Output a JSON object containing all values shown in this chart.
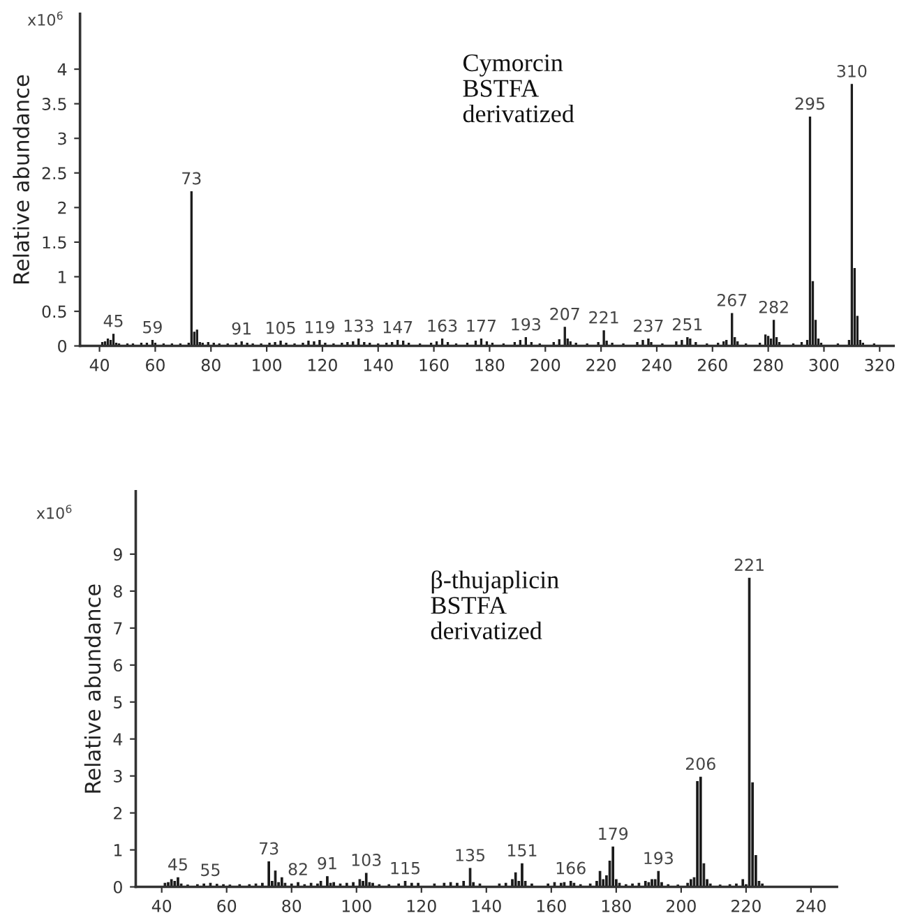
{
  "chart_data": [
    {
      "type": "bar",
      "ylabel": "Relative abundance",
      "color": "#1a1a1a",
      "xlim": [
        33,
        325
      ],
      "ylim": [
        0,
        4.8
      ],
      "xticks": [
        40,
        60,
        80,
        100,
        120,
        140,
        160,
        180,
        200,
        220,
        240,
        260,
        280,
        300,
        320
      ],
      "yticks": [
        0,
        0.5,
        1,
        1.5,
        2,
        2.5,
        3,
        3.5,
        4
      ],
      "grid": false,
      "x": [
        41,
        42,
        43,
        44,
        45,
        46,
        47,
        50,
        52,
        55,
        57,
        59,
        60,
        63,
        66,
        69,
        72,
        73,
        74,
        75,
        76,
        77,
        79,
        81,
        83,
        86,
        89,
        91,
        93,
        95,
        98,
        101,
        103,
        105,
        107,
        110,
        113,
        115,
        117,
        119,
        121,
        124,
        127,
        129,
        131,
        133,
        135,
        137,
        140,
        143,
        145,
        147,
        149,
        151,
        155,
        159,
        161,
        163,
        165,
        168,
        172,
        175,
        177,
        179,
        181,
        185,
        189,
        191,
        193,
        195,
        198,
        203,
        205,
        207,
        208,
        209,
        211,
        215,
        219,
        221,
        222,
        224,
        228,
        233,
        235,
        237,
        238,
        242,
        247,
        249,
        251,
        252,
        254,
        258,
        262,
        264,
        265,
        267,
        268,
        269,
        272,
        277,
        279,
        280,
        281,
        282,
        283,
        284,
        289,
        292,
        294,
        295,
        296,
        297,
        298,
        299,
        305,
        309,
        310,
        311,
        312,
        313,
        314,
        318
      ],
      "values": [
        0.05,
        0.06,
        0.1,
        0.08,
        0.17,
        0.04,
        0.03,
        0.03,
        0.03,
        0.04,
        0.04,
        0.08,
        0.04,
        0.03,
        0.03,
        0.03,
        0.04,
        2.23,
        0.2,
        0.23,
        0.05,
        0.04,
        0.05,
        0.04,
        0.03,
        0.03,
        0.04,
        0.06,
        0.04,
        0.03,
        0.03,
        0.04,
        0.05,
        0.07,
        0.04,
        0.03,
        0.04,
        0.07,
        0.06,
        0.08,
        0.04,
        0.03,
        0.04,
        0.05,
        0.06,
        0.1,
        0.05,
        0.04,
        0.03,
        0.04,
        0.05,
        0.08,
        0.07,
        0.04,
        0.03,
        0.04,
        0.06,
        0.1,
        0.05,
        0.03,
        0.04,
        0.07,
        0.1,
        0.06,
        0.04,
        0.03,
        0.05,
        0.08,
        0.12,
        0.05,
        0.03,
        0.05,
        0.09,
        0.27,
        0.1,
        0.06,
        0.04,
        0.03,
        0.05,
        0.22,
        0.07,
        0.04,
        0.03,
        0.05,
        0.08,
        0.1,
        0.05,
        0.03,
        0.06,
        0.08,
        0.12,
        0.1,
        0.05,
        0.03,
        0.04,
        0.06,
        0.08,
        0.47,
        0.12,
        0.06,
        0.03,
        0.04,
        0.16,
        0.14,
        0.1,
        0.37,
        0.12,
        0.05,
        0.03,
        0.05,
        0.08,
        3.31,
        0.93,
        0.37,
        0.1,
        0.04,
        0.03,
        0.08,
        3.78,
        1.12,
        0.43,
        0.08,
        0.04,
        0.03
      ],
      "annotations": [
        "x10$^{6}$",
        "Cymorcin\nBSTFA\nderivatized",
        {
          "text": "45",
          "x": 45,
          "y": 0.17
        },
        {
          "text": "59",
          "x": 59,
          "y": 0.08
        },
        {
          "text": "73",
          "x": 73,
          "y": 2.23
        },
        {
          "text": "91",
          "x": 91,
          "y": 0.06
        },
        {
          "text": "105",
          "x": 105,
          "y": 0.07
        },
        {
          "text": "119",
          "x": 119,
          "y": 0.08
        },
        {
          "text": "133",
          "x": 133,
          "y": 0.1
        },
        {
          "text": "147",
          "x": 147,
          "y": 0.08
        },
        {
          "text": "163",
          "x": 163,
          "y": 0.1
        },
        {
          "text": "177",
          "x": 177,
          "y": 0.1
        },
        {
          "text": "193",
          "x": 193,
          "y": 0.12
        },
        {
          "text": "207",
          "x": 207,
          "y": 0.27
        },
        {
          "text": "221",
          "x": 221,
          "y": 0.22
        },
        {
          "text": "237",
          "x": 237,
          "y": 0.1
        },
        {
          "text": "251",
          "x": 251,
          "y": 0.12
        },
        {
          "text": "267",
          "x": 267,
          "y": 0.47
        },
        {
          "text": "282",
          "x": 282,
          "y": 0.37
        },
        {
          "text": "295",
          "x": 295,
          "y": 3.31
        },
        {
          "text": "310",
          "x": 310,
          "y": 3.78
        }
      ]
    },
    {
      "type": "bar",
      "ylabel": "Relative abundance",
      "color": "#1a1a1a",
      "xlim": [
        32,
        248
      ],
      "ylim": [
        0,
        10.7
      ],
      "xticks": [
        40,
        60,
        80,
        100,
        120,
        140,
        160,
        180,
        200,
        220,
        240
      ],
      "yticks": [
        0,
        1,
        2,
        3,
        4,
        5,
        6,
        7,
        8,
        9
      ],
      "grid": false,
      "x": [
        41,
        42,
        43,
        44,
        45,
        46,
        48,
        51,
        53,
        55,
        57,
        59,
        61,
        64,
        67,
        69,
        71,
        73,
        74,
        75,
        76,
        77,
        78,
        80,
        82,
        84,
        86,
        88,
        89,
        91,
        92,
        93,
        95,
        97,
        99,
        101,
        102,
        103,
        104,
        105,
        107,
        110,
        113,
        115,
        117,
        119,
        124,
        127,
        129,
        131,
        133,
        135,
        136,
        138,
        144,
        146,
        148,
        149,
        150,
        151,
        152,
        154,
        159,
        161,
        163,
        164,
        166,
        167,
        169,
        172,
        174,
        175,
        176,
        177,
        178,
        179,
        180,
        181,
        183,
        185,
        187,
        189,
        190,
        191,
        192,
        193,
        194,
        196,
        199,
        202,
        203,
        204,
        205,
        206,
        207,
        208,
        209,
        212,
        215,
        217,
        219,
        220,
        221,
        222,
        223,
        224,
        225
      ],
      "values": [
        0.1,
        0.12,
        0.2,
        0.15,
        0.25,
        0.08,
        0.05,
        0.06,
        0.08,
        0.1,
        0.07,
        0.06,
        0.05,
        0.06,
        0.06,
        0.08,
        0.1,
        0.68,
        0.15,
        0.43,
        0.12,
        0.25,
        0.1,
        0.08,
        0.12,
        0.06,
        0.1,
        0.08,
        0.15,
        0.28,
        0.1,
        0.12,
        0.08,
        0.1,
        0.12,
        0.2,
        0.15,
        0.37,
        0.12,
        0.1,
        0.06,
        0.06,
        0.08,
        0.15,
        0.1,
        0.1,
        0.08,
        0.1,
        0.12,
        0.1,
        0.15,
        0.5,
        0.12,
        0.08,
        0.08,
        0.1,
        0.2,
        0.38,
        0.15,
        0.63,
        0.15,
        0.08,
        0.08,
        0.12,
        0.1,
        0.12,
        0.15,
        0.1,
        0.06,
        0.08,
        0.15,
        0.42,
        0.2,
        0.3,
        0.7,
        1.08,
        0.2,
        0.1,
        0.06,
        0.08,
        0.1,
        0.15,
        0.12,
        0.2,
        0.2,
        0.42,
        0.12,
        0.06,
        0.05,
        0.1,
        0.2,
        0.25,
        2.85,
        2.97,
        0.63,
        0.2,
        0.08,
        0.05,
        0.06,
        0.08,
        0.2,
        0.06,
        8.35,
        2.82,
        0.85,
        0.15,
        0.08
      ],
      "annotations": [
        "x10$^{6}$",
        "β-thujaplicin\nBSTFA\nderivatized",
        {
          "text": "45",
          "x": 45,
          "y": 0.25
        },
        {
          "text": "55",
          "x": 55,
          "y": 0.1
        },
        {
          "text": "73",
          "x": 73,
          "y": 0.68
        },
        {
          "text": "82",
          "x": 82,
          "y": 0.12
        },
        {
          "text": "91",
          "x": 91,
          "y": 0.28
        },
        {
          "text": "103",
          "x": 103,
          "y": 0.37
        },
        {
          "text": "115",
          "x": 115,
          "y": 0.15
        },
        {
          "text": "135",
          "x": 135,
          "y": 0.5
        },
        {
          "text": "151",
          "x": 151,
          "y": 0.63
        },
        {
          "text": "166",
          "x": 166,
          "y": 0.15
        },
        {
          "text": "179",
          "x": 179,
          "y": 1.08
        },
        {
          "text": "193",
          "x": 193,
          "y": 0.42
        },
        {
          "text": "206",
          "x": 206,
          "y": 2.97
        },
        {
          "text": "221",
          "x": 221,
          "y": 8.35
        }
      ]
    }
  ]
}
